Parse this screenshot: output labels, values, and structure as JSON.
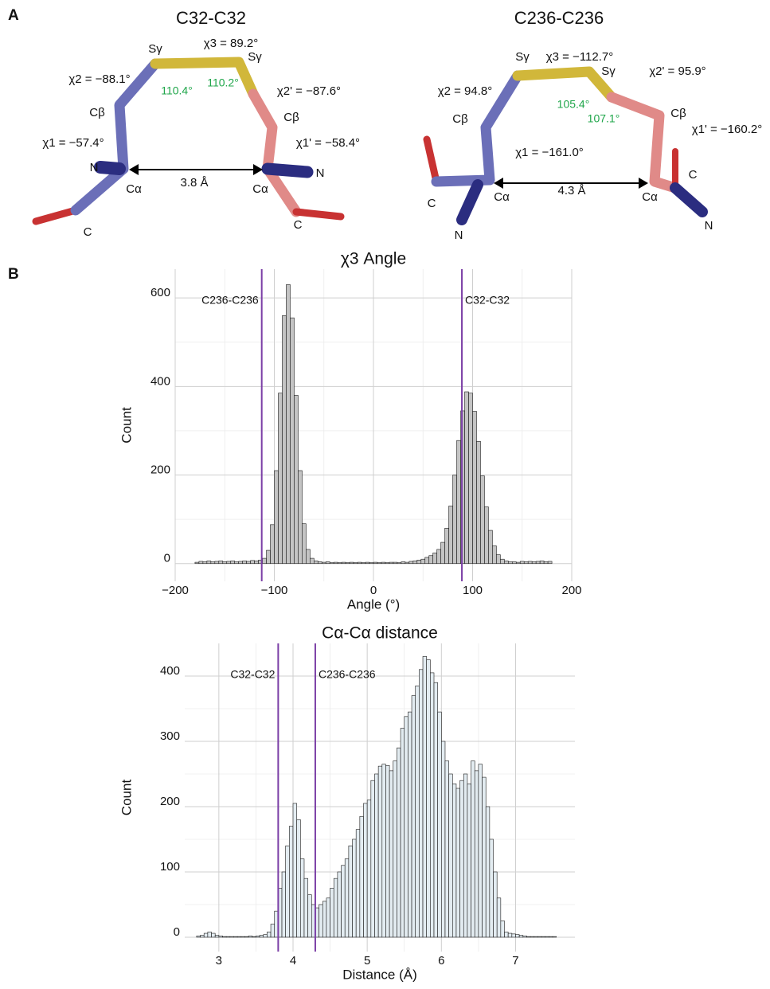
{
  "panel_labels": [
    "A",
    "B"
  ],
  "panel_a": [
    {
      "title": "C32-C32",
      "labels": [
        "Sγ",
        "χ3 = 89.2°",
        "Sγ",
        "χ2 = −88.1°",
        "χ2' = −87.6°",
        "Cβ",
        "Cβ",
        "χ1 = −57.4°",
        "χ1' = −58.4°",
        "N",
        "N",
        "Cα",
        "Cα",
        "C",
        "C"
      ],
      "angle_labels": [
        "110.4°",
        "110.2°"
      ],
      "distance": "3.8 Å"
    },
    {
      "title": "C236-C236",
      "labels": [
        "Sγ",
        "χ3 = −112.7°",
        "Sγ",
        "χ2 = 94.8°",
        "χ2' = 95.9°",
        "Cβ",
        "Cβ",
        "χ1 = −161.0°",
        "χ1' = −160.2°",
        "N",
        "N",
        "Cα",
        "Cα",
        "C",
        "C"
      ],
      "angle_labels": [
        "105.4°",
        "107.1°"
      ],
      "distance": "4.3 Å"
    }
  ],
  "chart_data": [
    {
      "type": "histogram",
      "title": "χ3 Angle",
      "x_label": "Angle (°)",
      "y_label": "Count",
      "color": "#c4c4c4",
      "edge_color": "#1a1a1a",
      "grid": true,
      "xlim": [
        -200,
        200
      ],
      "ylim": [
        -40,
        665
      ],
      "xticks": [
        {
          "value": -200,
          "label": "−200"
        },
        {
          "value": -100,
          "label": "−100"
        },
        0,
        100,
        200
      ],
      "yticks": [
        0,
        200,
        400,
        600
      ],
      "bins": [
        -180,
        -176,
        -172,
        -168,
        -164,
        -160,
        -156,
        -152,
        -148,
        -144,
        -140,
        -136,
        -132,
        -128,
        -124,
        -120,
        -116,
        -112,
        -108,
        -104,
        -100,
        -96,
        -92,
        -88,
        -84,
        -80,
        -76,
        -72,
        -68,
        -64,
        -60,
        -56,
        -52,
        -48,
        -44,
        -40,
        -36,
        -32,
        -28,
        -24,
        -20,
        -16,
        -12,
        -8,
        -4,
        0,
        4,
        8,
        12,
        16,
        20,
        24,
        28,
        32,
        36,
        40,
        44,
        48,
        52,
        56,
        60,
        64,
        68,
        72,
        76,
        80,
        84,
        88,
        92,
        96,
        100,
        104,
        108,
        112,
        116,
        120,
        124,
        128,
        132,
        136,
        140,
        144,
        148,
        152,
        156,
        160,
        164,
        168,
        172,
        176,
        180
      ],
      "values": [
        3,
        5,
        4,
        6,
        4,
        5,
        6,
        4,
        5,
        6,
        4,
        5,
        6,
        5,
        7,
        6,
        8,
        12,
        30,
        88,
        210,
        385,
        560,
        630,
        555,
        380,
        210,
        90,
        32,
        12,
        6,
        4,
        3,
        4,
        2,
        3,
        2,
        3,
        2,
        3,
        2,
        3,
        2,
        3,
        2,
        3,
        2,
        3,
        2,
        3,
        3,
        2,
        4,
        3,
        5,
        6,
        8,
        10,
        14,
        18,
        24,
        32,
        48,
        80,
        130,
        200,
        278,
        345,
        388,
        385,
        344,
        276,
        198,
        128,
        75,
        40,
        20,
        10,
        6,
        4,
        4,
        3,
        5,
        4,
        5,
        4,
        5,
        6,
        4,
        5
      ],
      "reference_lines": [
        {
          "value": -112.7,
          "label": "C236-C236"
        },
        {
          "value": 89.2,
          "label": "C32-C32"
        }
      ],
      "reference_color": "#7b3fa6"
    },
    {
      "type": "histogram",
      "title": "Cα-Cα distance",
      "x_label": "Distance (Å)",
      "y_label": "Count",
      "color": "#e3ecf1",
      "edge_color": "#1a1a1a",
      "grid": true,
      "xlim": [
        2.54,
        7.8
      ],
      "ylim": [
        -22,
        450
      ],
      "xticks": [
        3,
        4,
        5,
        6,
        7
      ],
      "yticks": [
        0,
        100,
        200,
        300,
        400
      ],
      "bins": [
        2.7,
        2.75,
        2.8,
        2.85,
        2.9,
        2.95,
        3,
        3.05,
        3.1,
        3.15,
        3.2,
        3.25,
        3.3,
        3.35,
        3.4,
        3.45,
        3.5,
        3.55,
        3.6,
        3.65,
        3.7,
        3.75,
        3.8,
        3.85,
        3.9,
        3.95,
        4,
        4.05,
        4.1,
        4.15,
        4.2,
        4.25,
        4.3,
        4.35,
        4.4,
        4.45,
        4.5,
        4.55,
        4.6,
        4.65,
        4.7,
        4.75,
        4.8,
        4.85,
        4.9,
        4.95,
        5,
        5.05,
        5.1,
        5.15,
        5.2,
        5.25,
        5.3,
        5.35,
        5.4,
        5.45,
        5.5,
        5.55,
        5.6,
        5.65,
        5.7,
        5.75,
        5.8,
        5.85,
        5.9,
        5.95,
        6,
        6.05,
        6.1,
        6.15,
        6.2,
        6.25,
        6.3,
        6.35,
        6.4,
        6.45,
        6.5,
        6.55,
        6.6,
        6.65,
        6.7,
        6.75,
        6.8,
        6.85,
        6.9,
        6.95,
        7,
        7.05,
        7.1,
        7.15,
        7.2,
        7.25,
        7.3,
        7.35,
        7.4,
        7.45,
        7.5,
        7.55
      ],
      "values": [
        2,
        3,
        6,
        8,
        6,
        3,
        2,
        1,
        1,
        1,
        1,
        1,
        1,
        1,
        2,
        1,
        2,
        3,
        4,
        8,
        20,
        40,
        75,
        100,
        140,
        170,
        205,
        180,
        120,
        90,
        65,
        50,
        45,
        50,
        55,
        60,
        75,
        90,
        100,
        110,
        120,
        140,
        150,
        165,
        185,
        205,
        210,
        240,
        250,
        262,
        265,
        263,
        255,
        270,
        290,
        320,
        338,
        345,
        370,
        385,
        410,
        430,
        425,
        405,
        390,
        345,
        300,
        270,
        250,
        235,
        228,
        240,
        250,
        235,
        270,
        255,
        265,
        245,
        200,
        150,
        100,
        60,
        25,
        8,
        6,
        5,
        4,
        3,
        2,
        1,
        1,
        1,
        1,
        1,
        1,
        1,
        1
      ],
      "reference_lines": [
        {
          "value": 3.8,
          "label": "C32-C32"
        },
        {
          "value": 4.3,
          "label": "C236-C236"
        }
      ],
      "reference_color": "#7b3fa6"
    }
  ]
}
